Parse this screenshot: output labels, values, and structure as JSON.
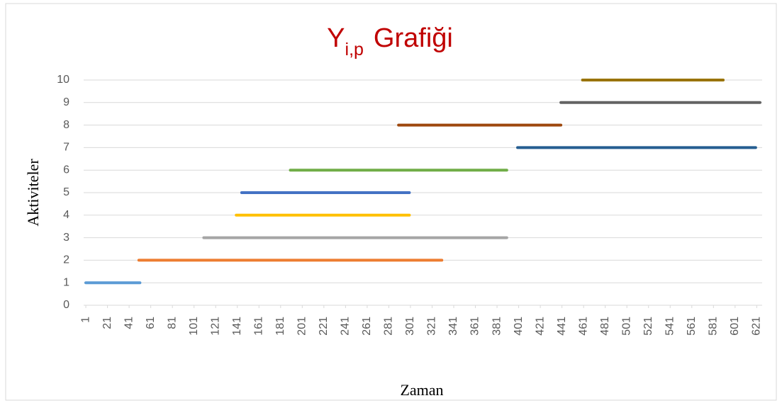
{
  "chart_data": {
    "type": "line",
    "title": "Y",
    "title_subscript": "i,p",
    "title_rest": "Grafiği",
    "x_label": "Zaman",
    "y_label": "Aktiviteler",
    "xlim": [
      -1,
      626
    ],
    "ylim": [
      0,
      10
    ],
    "xticks": [
      1,
      21,
      41,
      61,
      81,
      101,
      121,
      141,
      161,
      181,
      201,
      221,
      241,
      261,
      281,
      301,
      321,
      341,
      361,
      381,
      401,
      421,
      441,
      461,
      481,
      501,
      521,
      541,
      561,
      581,
      601,
      621
    ],
    "yticks": [
      0,
      1,
      2,
      3,
      4,
      5,
      6,
      7,
      8,
      9,
      10
    ],
    "grid": true,
    "series": [
      {
        "color": "#5b9bd5",
        "x": [
          1,
          51
        ],
        "values": [
          1,
          1
        ]
      },
      {
        "color": "#ed7d31",
        "x": [
          50,
          330
        ],
        "values": [
          2,
          2
        ]
      },
      {
        "color": "#a5a5a5",
        "x": [
          110,
          390
        ],
        "values": [
          3,
          3
        ]
      },
      {
        "color": "#ffc000",
        "x": [
          140,
          300
        ],
        "values": [
          4,
          4
        ]
      },
      {
        "color": "#4472c4",
        "x": [
          145,
          300
        ],
        "values": [
          5,
          5
        ]
      },
      {
        "color": "#70ad47",
        "x": [
          190,
          390
        ],
        "values": [
          6,
          6
        ]
      },
      {
        "color": "#255e91",
        "x": [
          400,
          620
        ],
        "values": [
          7,
          7
        ]
      },
      {
        "color": "#9e480e",
        "x": [
          290,
          440
        ],
        "values": [
          8,
          8
        ]
      },
      {
        "color": "#636363",
        "x": [
          440,
          624
        ],
        "values": [
          9,
          9
        ]
      },
      {
        "color": "#997300",
        "x": [
          460,
          590
        ],
        "values": [
          10,
          10
        ]
      }
    ]
  }
}
